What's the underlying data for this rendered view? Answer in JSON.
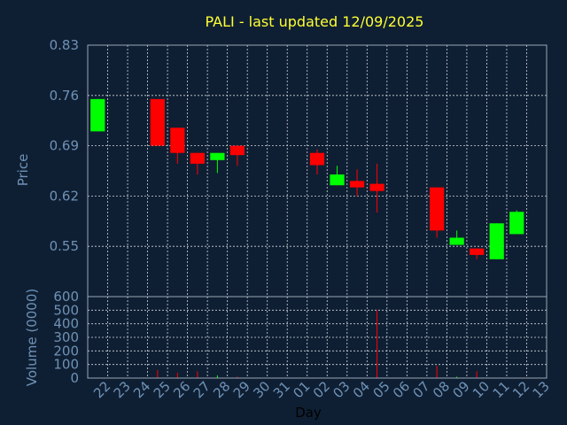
{
  "chart_data": {
    "type": "candlestick",
    "title": "PALI - last updated 12/09/2025",
    "xlabel": "Day",
    "ylabel_price": "Price",
    "ylabel_volume": "Volume (0000)",
    "x_ticks": [
      "22",
      "23",
      "24",
      "25",
      "26",
      "27",
      "28",
      "29",
      "30",
      "31",
      "01",
      "02",
      "03",
      "04",
      "05",
      "06",
      "07",
      "08",
      "09",
      "10",
      "11",
      "12",
      "13"
    ],
    "price_ylim": [
      0.48,
      0.83
    ],
    "price_ticks": [
      "0.83",
      "0.76",
      "0.69",
      "0.62",
      "0.55"
    ],
    "volume_ylim": [
      0,
      600
    ],
    "volume_ticks": [
      "600",
      "500",
      "400",
      "300",
      "200",
      "100",
      "0"
    ],
    "grid": true,
    "colors": {
      "up": "#00ff00",
      "down": "#ff0000",
      "background": "#0f1f33",
      "plot": "#0f1f33",
      "title": "#ffff33",
      "text": "#6f92b6"
    },
    "candles": [
      {
        "day": "22",
        "open": 0.71,
        "high": 0.755,
        "low": 0.71,
        "close": 0.755,
        "volume": 0
      },
      {
        "day": "25",
        "open": 0.755,
        "high": 0.755,
        "low": 0.69,
        "close": 0.69,
        "volume": 60
      },
      {
        "day": "26",
        "open": 0.715,
        "high": 0.715,
        "low": 0.665,
        "close": 0.68,
        "volume": 40
      },
      {
        "day": "27",
        "open": 0.68,
        "high": 0.68,
        "low": 0.65,
        "close": 0.665,
        "volume": 50
      },
      {
        "day": "28",
        "open": 0.67,
        "high": 0.68,
        "low": 0.652,
        "close": 0.68,
        "volume": 20
      },
      {
        "day": "29",
        "open": 0.69,
        "high": 0.69,
        "low": 0.662,
        "close": 0.677,
        "volume": 10
      },
      {
        "day": "02",
        "open": 0.68,
        "high": 0.685,
        "low": 0.65,
        "close": 0.663,
        "volume": 0
      },
      {
        "day": "03",
        "open": 0.635,
        "high": 0.662,
        "low": 0.635,
        "close": 0.65,
        "volume": 0
      },
      {
        "day": "04",
        "open": 0.641,
        "high": 0.657,
        "low": 0.62,
        "close": 0.632,
        "volume": 0
      },
      {
        "day": "05",
        "open": 0.637,
        "high": 0.665,
        "low": 0.597,
        "close": 0.627,
        "volume": 500
      },
      {
        "day": "08",
        "open": 0.632,
        "high": 0.632,
        "low": 0.562,
        "close": 0.572,
        "volume": 90
      },
      {
        "day": "09",
        "open": 0.552,
        "high": 0.572,
        "low": 0.552,
        "close": 0.562,
        "volume": 10
      },
      {
        "day": "10",
        "open": 0.547,
        "high": 0.547,
        "low": 0.532,
        "close": 0.538,
        "volume": 50
      },
      {
        "day": "11",
        "open": 0.532,
        "high": 0.582,
        "low": 0.532,
        "close": 0.582,
        "volume": 0
      },
      {
        "day": "12",
        "open": 0.567,
        "high": 0.6,
        "low": 0.567,
        "close": 0.598,
        "volume": 0
      }
    ]
  }
}
